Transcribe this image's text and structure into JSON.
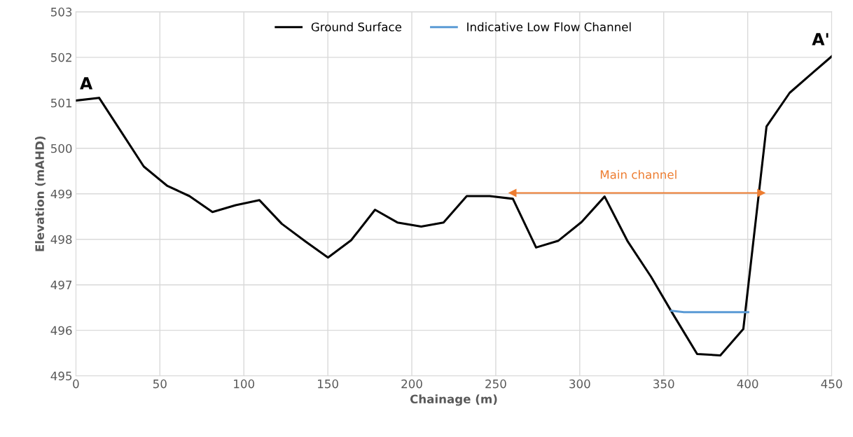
{
  "chart_data": {
    "type": "line",
    "xlabel": "Chainage (m)",
    "ylabel": "Elevation (mAHD)",
    "xlim": [
      0,
      450
    ],
    "xticks": [
      0,
      50,
      100,
      150,
      200,
      250,
      300,
      350,
      400,
      450
    ],
    "ylim": [
      495,
      503
    ],
    "yticks": [
      495,
      496,
      497,
      498,
      499,
      500,
      501,
      502,
      503
    ],
    "grid": true,
    "legend": "top",
    "marker": "none",
    "line_style": "solid",
    "series": [
      {
        "name": "Ground Surface",
        "color": "#000000",
        "x": [
          0,
          13.8,
          27.9,
          40.4,
          54.2,
          67.6,
          81.3,
          95.1,
          109.3,
          122.6,
          136.8,
          150.1,
          163.9,
          178.1,
          191.4,
          205.6,
          218.9,
          232.7,
          246.4,
          260.2,
          274.0,
          287.3,
          301.1,
          314.8,
          328.6,
          342.4,
          356.1,
          369.9,
          383.7,
          397.4,
          411.2,
          425.0,
          438.7,
          450
        ],
        "values": [
          501.05,
          501.11,
          500.31,
          499.6,
          499.18,
          498.95,
          498.6,
          498.75,
          498.86,
          498.34,
          497.95,
          497.6,
          497.98,
          498.65,
          498.37,
          498.28,
          498.37,
          498.95,
          498.95,
          498.89,
          497.82,
          497.97,
          498.38,
          498.94,
          497.95,
          497.18,
          496.32,
          495.48,
          495.45,
          496.03,
          500.48,
          501.22,
          501.66,
          502.02
        ]
      },
      {
        "name": "Indicative Low Flow Channel",
        "color": "#5b9bd5",
        "x": [
          354.5,
          362,
          400.3
        ],
        "values": [
          496.43,
          496.4,
          496.4
        ]
      },
      {
        "color": "#ed7d31",
        "marker": "triangle",
        "x": [
          260,
          408
        ],
        "values": [
          499.02,
          499.02
        ]
      }
    ],
    "annotations": [
      {
        "text": "Main channel",
        "x": 335,
        "y": 499.02
      },
      {
        "text": "A",
        "x": 0,
        "y": 501.05
      },
      {
        "text": "A'",
        "x": 450,
        "y": 502.02
      }
    ]
  }
}
